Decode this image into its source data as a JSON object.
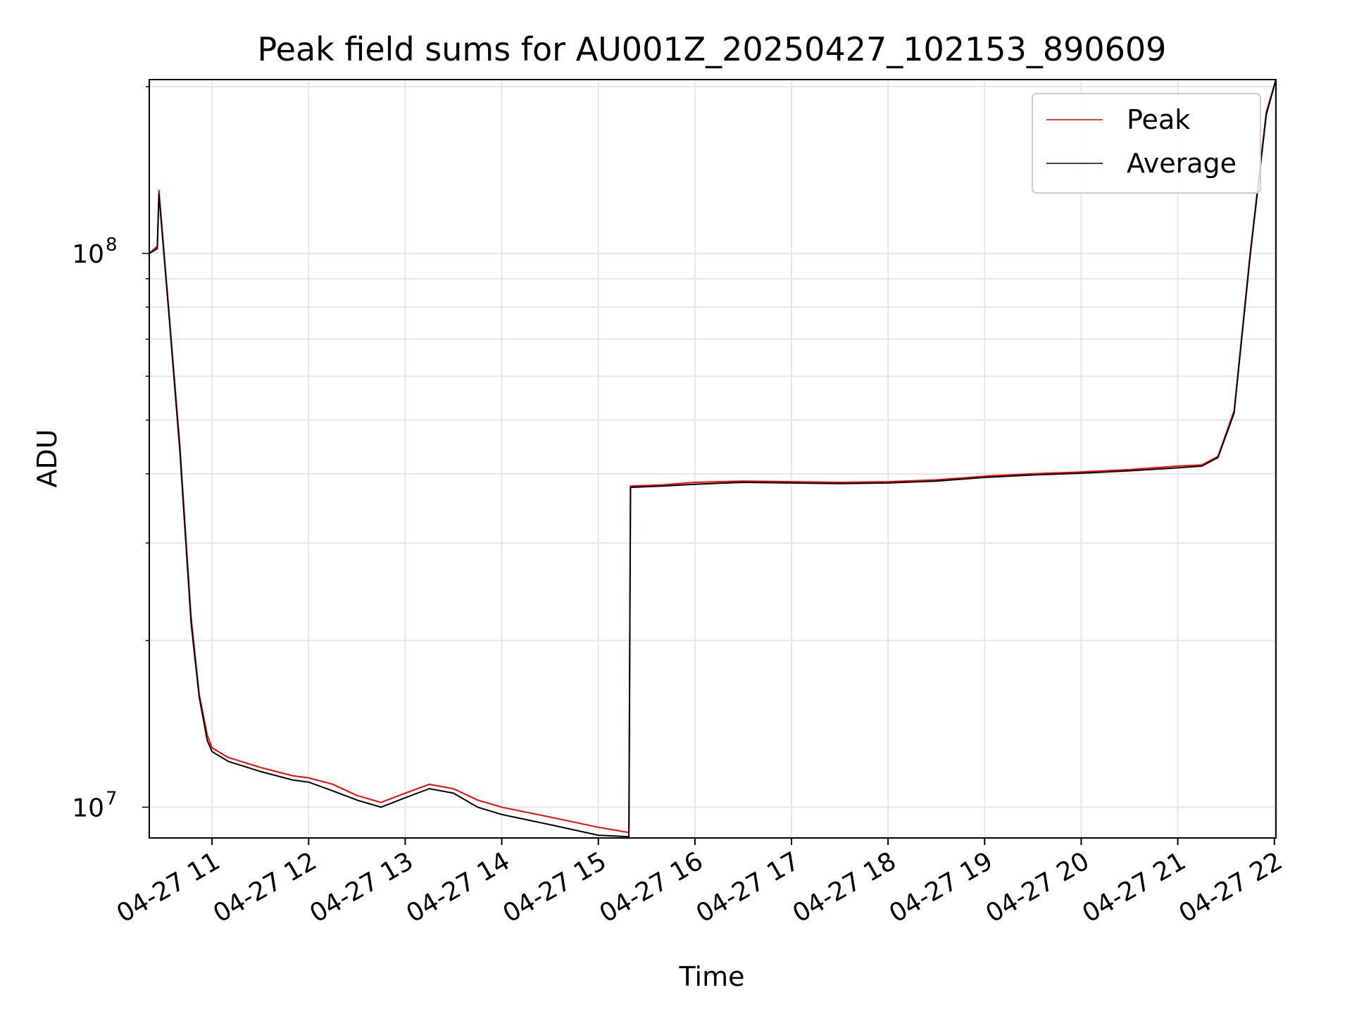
{
  "chart_data": {
    "type": "line",
    "title": "Peak field sums for AU001Z_20250427_102153_890609",
    "xlabel": "Time",
    "ylabel": "ADU",
    "y_scale": "log",
    "ylim": [
      8800000,
      206000000
    ],
    "xlim": [
      "04-27 10:21",
      "04-27 22:01"
    ],
    "grid": true,
    "legend": "top-right",
    "x_tick_labels": [
      "04-27 11",
      "04-27 12",
      "04-27 13",
      "04-27 14",
      "04-27 15",
      "04-27 16",
      "04-27 17",
      "04-27 18",
      "04-27 19",
      "04-27 20",
      "04-27 21",
      "04-27 22"
    ],
    "y_tick_labels": [
      {
        "value": 10000000,
        "base": "10",
        "exp": "7"
      },
      {
        "value": 100000000,
        "base": "10",
        "exp": "8"
      }
    ],
    "x": [
      "04-27 10:21",
      "04-27 10:26",
      "04-27 10:27",
      "04-27 10:33",
      "04-27 10:40",
      "04-27 10:47",
      "04-27 10:52",
      "04-27 10:57",
      "04-27 11:00",
      "04-27 11:10",
      "04-27 11:30",
      "04-27 11:50",
      "04-27 12:00",
      "04-27 12:15",
      "04-27 12:30",
      "04-27 12:45",
      "04-27 13:00",
      "04-27 13:15",
      "04-27 13:30",
      "04-27 13:45",
      "04-27 14:00",
      "04-27 14:30",
      "04-27 15:00",
      "04-27 15:19",
      "04-27 15:20",
      "04-27 15:40",
      "04-27 16:00",
      "04-27 16:30",
      "04-27 17:00",
      "04-27 17:30",
      "04-27 18:00",
      "04-27 18:30",
      "04-27 19:00",
      "04-27 19:30",
      "04-27 20:00",
      "04-27 20:30",
      "04-27 21:00",
      "04-27 21:15",
      "04-27 21:25",
      "04-27 21:35",
      "04-27 21:45",
      "04-27 21:55",
      "04-27 22:01"
    ],
    "series": [
      {
        "name": "Peak",
        "color": "#ff0000",
        "values": [
          100000000,
          103000000,
          130000000,
          80000000,
          45000000,
          22000000,
          16000000,
          13500000,
          12800000,
          12300000,
          11800000,
          11400000,
          11300000,
          11000000,
          10500000,
          10200000,
          10600000,
          11000000,
          10800000,
          10300000,
          10000000,
          9600000,
          9200000,
          9000000,
          38000000,
          38200000,
          38600000,
          38800000,
          38700000,
          38600000,
          38700000,
          39000000,
          39600000,
          40000000,
          40300000,
          40700000,
          41300000,
          41500000,
          43000000,
          52000000,
          100000000,
          180000000,
          206000000
        ]
      },
      {
        "name": "Average",
        "color": "#000000",
        "values": [
          100000000,
          102000000,
          128000000,
          79000000,
          44000000,
          21500000,
          15800000,
          13200000,
          12600000,
          12100000,
          11600000,
          11200000,
          11100000,
          10700000,
          10300000,
          10000000,
          10400000,
          10800000,
          10600000,
          10000000,
          9700000,
          9300000,
          8900000,
          8850000,
          37800000,
          38000000,
          38300000,
          38600000,
          38500000,
          38400000,
          38500000,
          38800000,
          39400000,
          39800000,
          40100000,
          40500000,
          41000000,
          41300000,
          42800000,
          51500000,
          99000000,
          178000000,
          206000000
        ]
      }
    ]
  }
}
